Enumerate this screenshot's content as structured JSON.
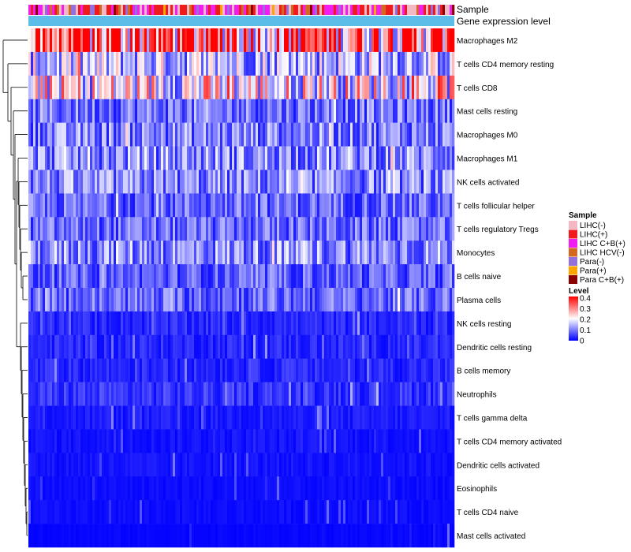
{
  "chart_data": {
    "type": "heatmap",
    "annotations": [
      {
        "name": "Sample",
        "kind": "categorical"
      },
      {
        "name": "Gene expression level",
        "kind": "continuous",
        "color": "#5bbde8"
      }
    ],
    "rows": [
      {
        "label": "Macrophages M2",
        "mean": 0.33
      },
      {
        "label": "T cells CD4 memory resting",
        "mean": 0.15
      },
      {
        "label": "T cells CD8",
        "mean": 0.2
      },
      {
        "label": "Mast cells resting",
        "mean": 0.09
      },
      {
        "label": "Macrophages M0",
        "mean": 0.1
      },
      {
        "label": "Macrophages M1",
        "mean": 0.11
      },
      {
        "label": "NK cells activated",
        "mean": 0.1
      },
      {
        "label": "T cells follicular helper",
        "mean": 0.08
      },
      {
        "label": "T cells regulatory  Tregs",
        "mean": 0.08
      },
      {
        "label": "Monocytes",
        "mean": 0.11
      },
      {
        "label": "B cells naive",
        "mean": 0.07
      },
      {
        "label": "Plasma cells",
        "mean": 0.08
      },
      {
        "label": "NK cells resting",
        "mean": 0.03
      },
      {
        "label": "Dendritic cells resting",
        "mean": 0.03
      },
      {
        "label": "B cells memory",
        "mean": 0.03
      },
      {
        "label": "Neutrophils",
        "mean": 0.04
      },
      {
        "label": "T cells gamma delta",
        "mean": 0.02
      },
      {
        "label": "T cells CD4 memory activated",
        "mean": 0.015
      },
      {
        "label": "Dendritic cells activated",
        "mean": 0.015
      },
      {
        "label": "Eosinophils",
        "mean": 0.01
      },
      {
        "label": "T cells CD4 naive",
        "mean": 0.01
      },
      {
        "label": "Mast cells activated",
        "mean": 0.005
      }
    ],
    "legend": {
      "sample_title": "Sample",
      "sample_groups": [
        {
          "label": "LIHC(-)",
          "color": "#f4b8c4"
        },
        {
          "label": "LIHC(+)",
          "color": "#ee1c1c"
        },
        {
          "label": "LIHC C+B(+)",
          "color": "#f01ef0"
        },
        {
          "label": "LIHC HCV(-)",
          "color": "#d2691e"
        },
        {
          "label": "Para(-)",
          "color": "#9370db"
        },
        {
          "label": "Para(+)",
          "color": "#ffa500"
        },
        {
          "label": "Para C+B(+)",
          "color": "#8b0000"
        }
      ],
      "level_title": "Level",
      "level_ticks": [
        "0.4",
        "0.3",
        "0.2",
        "0.1",
        "0"
      ],
      "level_range": [
        0,
        0.4
      ],
      "level_colors": [
        "#0000ff",
        "#ffffff",
        "#ff0000"
      ]
    }
  }
}
